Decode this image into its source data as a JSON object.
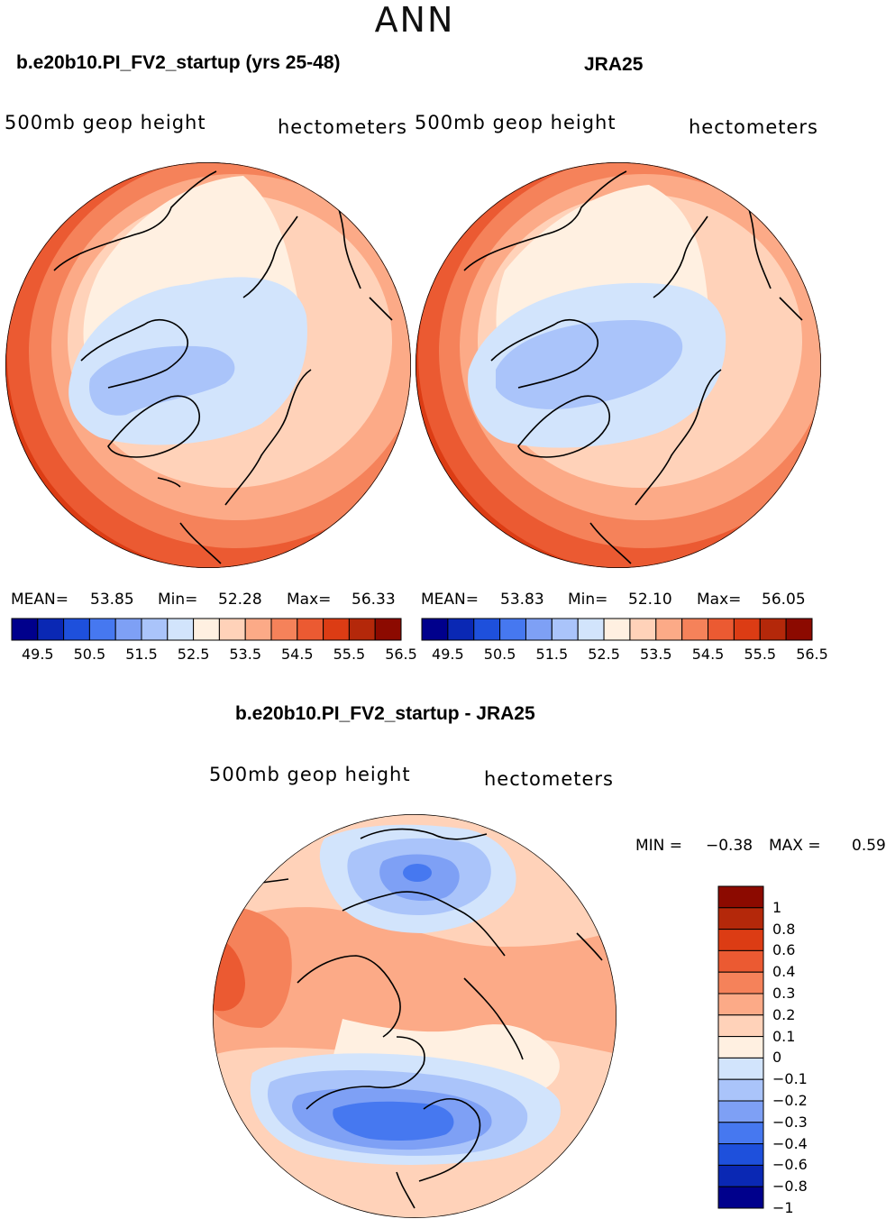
{
  "page_title": "ANN",
  "panels": [
    {
      "title": "b.e20b10.PI_FV2_startup (yrs 25-48)",
      "left_label": "500mb  geop  height",
      "right_label": "hectometers",
      "stats": {
        "mean_label": "MEAN=",
        "mean": "53.85",
        "min_label": "Min=",
        "min": "52.28",
        "max_label": "Max=",
        "max": "56.33"
      }
    },
    {
      "title": "JRA25",
      "left_label": "500mb  geop  height",
      "right_label": "hectometers",
      "stats": {
        "mean_label": "MEAN=",
        "mean": "53.83",
        "min_label": "Min=",
        "min": "52.10",
        "max_label": "Max=",
        "max": "56.05"
      }
    },
    {
      "title": "b.e20b10.PI_FV2_startup - JRA25",
      "left_label": "500mb  geop  height",
      "right_label": "hectometers",
      "stats": {
        "min_label": "MIN =",
        "min": "−0.38",
        "max_label": "MAX =",
        "max": "0.59"
      }
    }
  ],
  "colorbar_top": {
    "tick_labels": [
      "49.5",
      "50.5",
      "51.5",
      "52.5",
      "53.5",
      "54.5",
      "55.5",
      "56.5"
    ],
    "colors": [
      "#00008c",
      "#0a28b4",
      "#1e50dc",
      "#4678f0",
      "#7ea0f5",
      "#aac4fa",
      "#d2e4fc",
      "#fff0e1",
      "#ffd2b9",
      "#fcaa87",
      "#f5825a",
      "#eb5a32",
      "#dc3c14",
      "#b4280a",
      "#8c0a00"
    ]
  },
  "colorbar_diff": {
    "tick_labels": [
      "1",
      "0.8",
      "0.6",
      "0.4",
      "0.3",
      "0.2",
      "0.1",
      "0",
      "−0.1",
      "−0.2",
      "−0.3",
      "−0.4",
      "−0.6",
      "−0.8",
      "−1"
    ],
    "colors": [
      "#8c0a00",
      "#b4280a",
      "#dc3c14",
      "#eb5a32",
      "#f5825a",
      "#fcaa87",
      "#ffd2b9",
      "#fff0e1",
      "#d2e4fc",
      "#aac4fa",
      "#7ea0f5",
      "#4678f0",
      "#1e50dc",
      "#0a28b4",
      "#00008c"
    ]
  }
}
